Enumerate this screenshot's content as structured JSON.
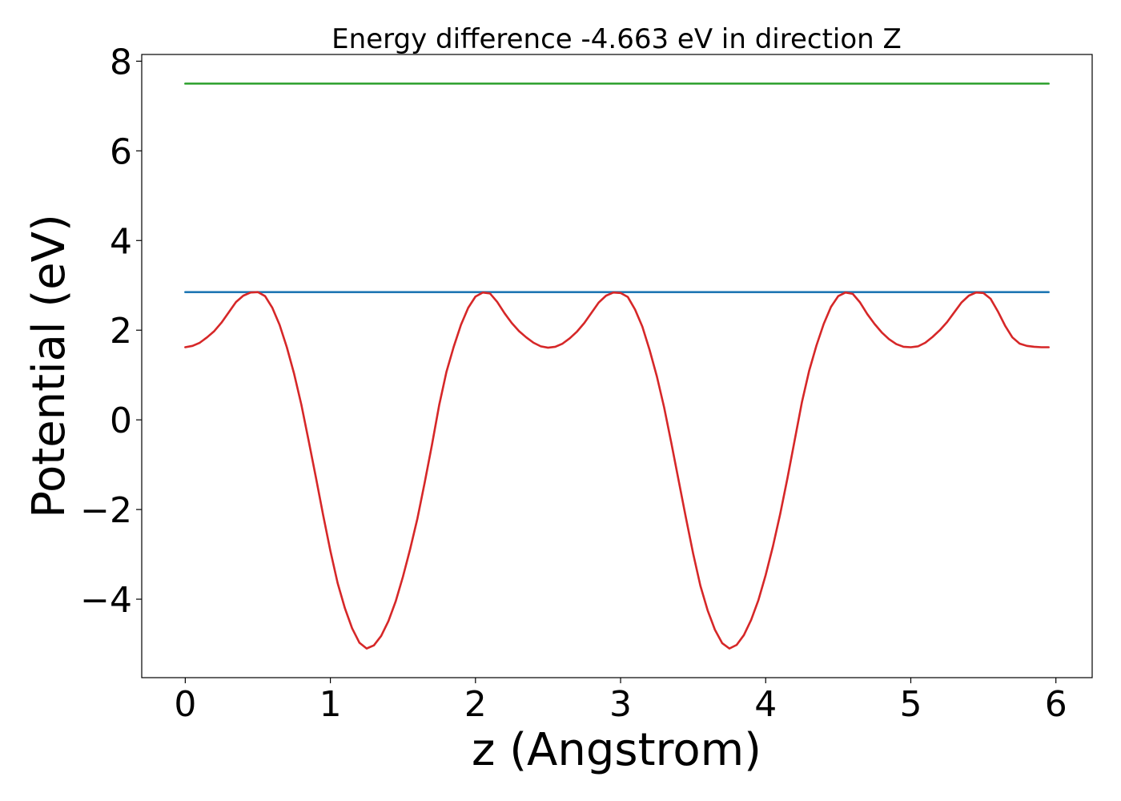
{
  "chart_data": {
    "type": "line",
    "title": "Energy difference -4.663 eV in direction Z",
    "xlabel": "z (Angstrom)",
    "ylabel": "Potential (eV)",
    "xlim": [
      -0.3,
      6.25
    ],
    "ylim": [
      -5.75,
      8.15
    ],
    "xticks": [
      0,
      1,
      2,
      3,
      4,
      5,
      6
    ],
    "xtick_labels": [
      "0",
      "1",
      "2",
      "3",
      "4",
      "5",
      "6"
    ],
    "yticks": [
      -4,
      -2,
      0,
      2,
      4,
      6,
      8
    ],
    "ytick_labels": [
      "−4",
      "−2",
      "0",
      "2",
      "4",
      "6",
      "8"
    ],
    "grid": false,
    "legend": "none",
    "series": [
      {
        "color": "#2ca02c",
        "x": [
          0,
          5.95
        ],
        "values": [
          7.5,
          7.5
        ]
      },
      {
        "color": "#1f77b4",
        "x": [
          0,
          5.95
        ],
        "values": [
          2.85,
          2.85
        ]
      },
      {
        "color": "#d62728",
        "x": [
          0,
          0.05,
          0.1,
          0.15,
          0.2,
          0.25,
          0.3,
          0.35,
          0.4,
          0.45,
          0.5,
          0.55,
          0.6,
          0.65,
          0.7,
          0.75,
          0.8,
          0.85,
          0.9,
          0.95,
          1.0,
          1.05,
          1.1,
          1.15,
          1.2,
          1.25,
          1.3,
          1.35,
          1.4,
          1.45,
          1.5,
          1.55,
          1.6,
          1.65,
          1.7,
          1.75,
          1.8,
          1.85,
          1.9,
          1.95,
          2.0,
          2.05,
          2.1,
          2.15,
          2.2,
          2.25,
          2.3,
          2.35,
          2.4,
          2.45,
          2.5,
          2.55,
          2.6,
          2.65,
          2.7,
          2.75,
          2.8,
          2.85,
          2.9,
          2.95,
          3.0,
          3.05,
          3.1,
          3.15,
          3.2,
          3.25,
          3.3,
          3.35,
          3.4,
          3.45,
          3.5,
          3.55,
          3.6,
          3.65,
          3.7,
          3.75,
          3.8,
          3.85,
          3.9,
          3.95,
          4.0,
          4.05,
          4.1,
          4.15,
          4.2,
          4.25,
          4.3,
          4.35,
          4.4,
          4.45,
          4.5,
          4.55,
          4.6,
          4.65,
          4.7,
          4.75,
          4.8,
          4.85,
          4.9,
          4.95,
          5.0,
          5.05,
          5.1,
          5.15,
          5.2,
          5.25,
          5.3,
          5.35,
          5.4,
          5.45,
          5.5,
          5.55,
          5.6,
          5.65,
          5.7,
          5.75,
          5.8,
          5.85,
          5.9,
          5.95
        ],
        "values": [
          1.62,
          1.65,
          1.72,
          1.84,
          1.98,
          2.17,
          2.4,
          2.63,
          2.77,
          2.84,
          2.85,
          2.76,
          2.5,
          2.12,
          1.62,
          1.03,
          0.34,
          -0.46,
          -1.28,
          -2.12,
          -2.92,
          -3.64,
          -4.2,
          -4.65,
          -4.97,
          -5.1,
          -5.03,
          -4.82,
          -4.49,
          -4.05,
          -3.5,
          -2.88,
          -2.2,
          -1.4,
          -0.56,
          0.33,
          1.07,
          1.63,
          2.12,
          2.5,
          2.75,
          2.84,
          2.82,
          2.63,
          2.38,
          2.16,
          1.98,
          1.84,
          1.72,
          1.64,
          1.61,
          1.63,
          1.7,
          1.82,
          1.97,
          2.16,
          2.39,
          2.62,
          2.77,
          2.84,
          2.83,
          2.74,
          2.46,
          2.08,
          1.56,
          0.97,
          0.28,
          -0.52,
          -1.35,
          -2.18,
          -2.98,
          -3.7,
          -4.25,
          -4.68,
          -4.98,
          -5.1,
          -5.02,
          -4.8,
          -4.46,
          -4.02,
          -3.46,
          -2.82,
          -2.1,
          -1.3,
          -0.45,
          0.4,
          1.1,
          1.66,
          2.14,
          2.52,
          2.76,
          2.84,
          2.81,
          2.62,
          2.36,
          2.14,
          1.95,
          1.8,
          1.69,
          1.63,
          1.62,
          1.64,
          1.72,
          1.85,
          2.0,
          2.18,
          2.4,
          2.62,
          2.77,
          2.84,
          2.83,
          2.7,
          2.42,
          2.1,
          1.84,
          1.7,
          1.65,
          1.63,
          1.62,
          1.62
        ]
      }
    ]
  }
}
